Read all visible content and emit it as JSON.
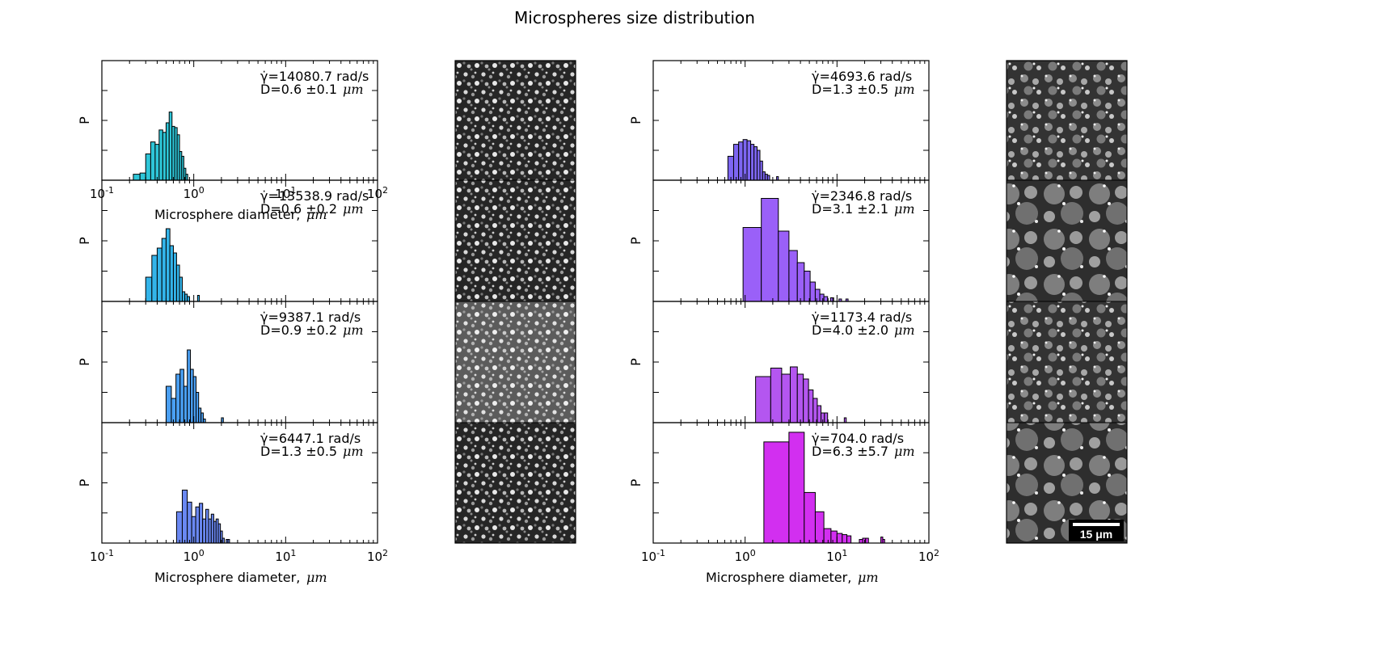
{
  "title": "Microspheres size distribution",
  "micrograph_scale_bar": "15 μm",
  "chart_data": [
    {
      "type": "bar",
      "column": "left",
      "panel": 1,
      "color": "#2ec6d8",
      "annotation_rate": "γ̇=14080.7 rad/s",
      "annotation_d": "D=0.6 ±0.1",
      "annotation_unit": "μm",
      "ylabel": "P",
      "xlabel": "Microsphere diameter,",
      "xlabel_unit": "μm",
      "xscale": "log",
      "xlim": [
        0.1,
        100
      ],
      "x_ticks": [
        "10-1",
        "100",
        "101",
        "102"
      ],
      "bins": [
        [
          0.22,
          0.26,
          0.05
        ],
        [
          0.26,
          0.3,
          0.06
        ],
        [
          0.3,
          0.34,
          0.22
        ],
        [
          0.34,
          0.38,
          0.32
        ],
        [
          0.38,
          0.42,
          0.3
        ],
        [
          0.42,
          0.46,
          0.42
        ],
        [
          0.46,
          0.5,
          0.4
        ],
        [
          0.5,
          0.54,
          0.48
        ],
        [
          0.54,
          0.58,
          0.57
        ],
        [
          0.58,
          0.62,
          0.45
        ],
        [
          0.62,
          0.66,
          0.44
        ],
        [
          0.66,
          0.7,
          0.38
        ],
        [
          0.7,
          0.74,
          0.24
        ],
        [
          0.74,
          0.78,
          0.2
        ],
        [
          0.78,
          0.82,
          0.1
        ],
        [
          0.82,
          0.86,
          0.05
        ]
      ]
    },
    {
      "type": "bar",
      "column": "left",
      "panel": 2,
      "color": "#33b4ea",
      "annotation_rate": "γ̇=13538.9 rad/s",
      "annotation_d": "D=0.6 ±0.2",
      "annotation_unit": "μm",
      "ylabel": "P",
      "xscale": "log",
      "xlim": [
        0.1,
        100
      ],
      "bins": [
        [
          0.3,
          0.35,
          0.2
        ],
        [
          0.35,
          0.4,
          0.38
        ],
        [
          0.4,
          0.45,
          0.44
        ],
        [
          0.45,
          0.5,
          0.52
        ],
        [
          0.5,
          0.55,
          0.6
        ],
        [
          0.55,
          0.6,
          0.46
        ],
        [
          0.6,
          0.65,
          0.4
        ],
        [
          0.65,
          0.7,
          0.3
        ],
        [
          0.7,
          0.75,
          0.2
        ],
        [
          0.75,
          0.8,
          0.08
        ],
        [
          0.8,
          0.85,
          0.06
        ],
        [
          0.85,
          0.9,
          0.04
        ],
        [
          1.1,
          1.15,
          0.05
        ]
      ]
    },
    {
      "type": "bar",
      "column": "left",
      "panel": 3,
      "color": "#4a9ff2",
      "annotation_rate": "γ̇=9387.1 rad/s",
      "annotation_d": "D=0.9 ±0.2",
      "annotation_unit": "μm",
      "ylabel": "P",
      "xscale": "log",
      "xlim": [
        0.1,
        100
      ],
      "bins": [
        [
          0.5,
          0.57,
          0.3
        ],
        [
          0.57,
          0.64,
          0.2
        ],
        [
          0.64,
          0.71,
          0.4
        ],
        [
          0.71,
          0.78,
          0.44
        ],
        [
          0.78,
          0.85,
          0.3
        ],
        [
          0.85,
          0.92,
          0.6
        ],
        [
          0.92,
          0.99,
          0.44
        ],
        [
          0.99,
          1.06,
          0.38
        ],
        [
          1.06,
          1.13,
          0.25
        ],
        [
          1.13,
          1.2,
          0.12
        ],
        [
          1.2,
          1.27,
          0.08
        ],
        [
          1.27,
          1.34,
          0.03
        ],
        [
          2.0,
          2.1,
          0.04
        ]
      ]
    },
    {
      "type": "bar",
      "column": "left",
      "panel": 4,
      "color": "#6a88f2",
      "annotation_rate": "γ̇=6447.1 rad/s",
      "annotation_d": "D=1.3 ±0.5",
      "annotation_unit": "μm",
      "ylabel": "P",
      "xlabel": "Microsphere diameter,",
      "xlabel_unit": "μm",
      "xscale": "log",
      "xlim": [
        0.1,
        100
      ],
      "x_ticks": [
        "10-1",
        "100",
        "101",
        "102"
      ],
      "bins": [
        [
          0.65,
          0.75,
          0.26
        ],
        [
          0.75,
          0.85,
          0.44
        ],
        [
          0.85,
          0.95,
          0.34
        ],
        [
          0.95,
          1.05,
          0.22
        ],
        [
          1.05,
          1.15,
          0.3
        ],
        [
          1.15,
          1.25,
          0.33
        ],
        [
          1.25,
          1.35,
          0.2
        ],
        [
          1.35,
          1.45,
          0.28
        ],
        [
          1.45,
          1.55,
          0.2
        ],
        [
          1.55,
          1.65,
          0.24
        ],
        [
          1.65,
          1.75,
          0.18
        ],
        [
          1.75,
          1.85,
          0.2
        ],
        [
          1.85,
          1.95,
          0.16
        ],
        [
          1.95,
          2.05,
          0.1
        ],
        [
          2.05,
          2.15,
          0.04
        ],
        [
          2.25,
          2.35,
          0.03
        ],
        [
          2.35,
          2.45,
          0.03
        ]
      ]
    },
    {
      "type": "bar",
      "column": "right",
      "panel": 1,
      "color": "#7d66f2",
      "annotation_rate": "γ̇=4693.6 rad/s",
      "annotation_d": "D=1.3 ±0.5",
      "annotation_unit": "μm",
      "ylabel": "P",
      "xscale": "log",
      "xlim": [
        0.1,
        100
      ],
      "bins": [
        [
          0.65,
          0.75,
          0.2
        ],
        [
          0.75,
          0.85,
          0.3
        ],
        [
          0.85,
          0.95,
          0.32
        ],
        [
          0.95,
          1.05,
          0.34
        ],
        [
          1.05,
          1.15,
          0.33
        ],
        [
          1.15,
          1.25,
          0.3
        ],
        [
          1.25,
          1.35,
          0.28
        ],
        [
          1.35,
          1.45,
          0.25
        ],
        [
          1.45,
          1.55,
          0.16
        ],
        [
          1.55,
          1.65,
          0.07
        ],
        [
          1.65,
          1.75,
          0.05
        ],
        [
          1.75,
          1.85,
          0.04
        ],
        [
          2.2,
          2.3,
          0.03
        ]
      ]
    },
    {
      "type": "bar",
      "column": "right",
      "panel": 2,
      "color": "#9a60f8",
      "annotation_rate": "γ̇=2346.8 rad/s",
      "annotation_d": "D=3.1 ±2.1",
      "annotation_unit": "μm",
      "ylabel": "P",
      "xscale": "log",
      "xlim": [
        0.1,
        100
      ],
      "bins": [
        [
          0.95,
          1.5,
          0.61
        ],
        [
          1.5,
          2.3,
          0.85
        ],
        [
          2.3,
          3.0,
          0.58
        ],
        [
          3.0,
          3.7,
          0.42
        ],
        [
          3.7,
          4.4,
          0.32
        ],
        [
          4.4,
          5.1,
          0.25
        ],
        [
          5.1,
          5.8,
          0.16
        ],
        [
          5.8,
          6.5,
          0.1
        ],
        [
          6.5,
          7.2,
          0.06
        ],
        [
          7.2,
          7.9,
          0.04
        ],
        [
          8.5,
          9.2,
          0.03
        ],
        [
          10.5,
          11.2,
          0.02
        ],
        [
          12.5,
          13.2,
          0.02
        ]
      ]
    },
    {
      "type": "bar",
      "column": "right",
      "panel": 3,
      "color": "#b456f0",
      "annotation_rate": "γ̇=1173.4 rad/s",
      "annotation_d": "D=4.0 ±2.0",
      "annotation_unit": "μm",
      "ylabel": "P",
      "xscale": "log",
      "xlim": [
        0.1,
        100
      ],
      "bins": [
        [
          1.3,
          1.9,
          0.38
        ],
        [
          1.9,
          2.5,
          0.45
        ],
        [
          2.5,
          3.1,
          0.4
        ],
        [
          3.1,
          3.7,
          0.46
        ],
        [
          3.7,
          4.3,
          0.4
        ],
        [
          4.3,
          4.9,
          0.36
        ],
        [
          4.9,
          5.5,
          0.27
        ],
        [
          5.5,
          6.1,
          0.2
        ],
        [
          6.1,
          6.7,
          0.14
        ],
        [
          6.7,
          7.3,
          0.08
        ],
        [
          7.3,
          7.9,
          0.08
        ],
        [
          12.0,
          12.6,
          0.04
        ]
      ]
    },
    {
      "type": "bar",
      "column": "right",
      "panel": 4,
      "color": "#d22ff0",
      "annotation_rate": "γ̇=704.0 rad/s",
      "annotation_d": "D=6.3 ±5.7",
      "annotation_unit": "μm",
      "ylabel": "P",
      "xlabel": "Microsphere diameter,",
      "xlabel_unit": "μm",
      "xscale": "log",
      "xlim": [
        0.1,
        100
      ],
      "x_ticks": [
        "10-1",
        "100",
        "101",
        "102"
      ],
      "bins": [
        [
          1.6,
          3.0,
          0.84
        ],
        [
          3.0,
          4.4,
          0.92
        ],
        [
          4.4,
          5.8,
          0.42
        ],
        [
          5.8,
          7.2,
          0.26
        ],
        [
          7.2,
          8.6,
          0.12
        ],
        [
          8.6,
          10.0,
          0.1
        ],
        [
          10.0,
          11.4,
          0.08
        ],
        [
          11.4,
          12.8,
          0.07
        ],
        [
          12.8,
          14.2,
          0.06
        ],
        [
          17.5,
          19.0,
          0.03
        ],
        [
          19.0,
          20.5,
          0.04
        ],
        [
          20.5,
          22.0,
          0.04
        ],
        [
          30.0,
          31.5,
          0.05
        ],
        [
          31.5,
          33.0,
          0.03
        ]
      ]
    }
  ]
}
